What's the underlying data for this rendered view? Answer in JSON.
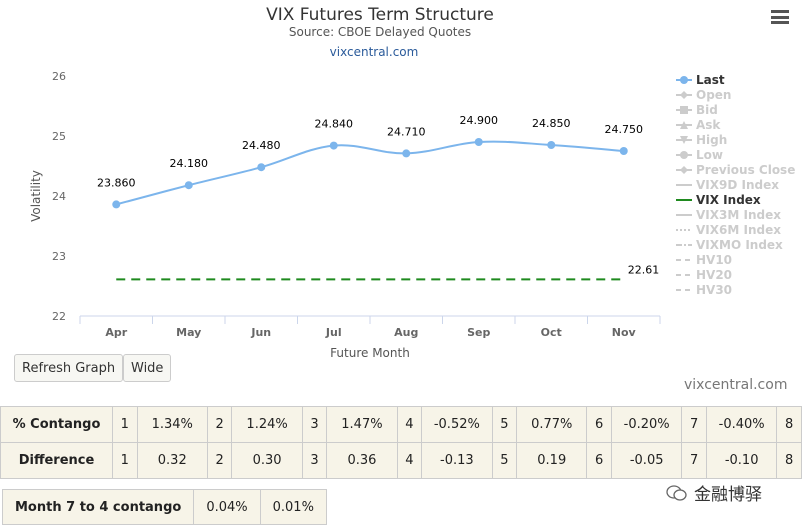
{
  "chart_data": {
    "type": "line",
    "title": "VIX Futures Term Structure",
    "subtitle": "Source: CBOE Delayed Quotes",
    "source_link": "vixcentral.com",
    "xlabel": "Future Month",
    "ylabel": "Volatility",
    "categories": [
      "Apr",
      "May",
      "Jun",
      "Jul",
      "Aug",
      "Sep",
      "Oct",
      "Nov"
    ],
    "ylim": [
      22,
      26
    ],
    "yticks": [
      "22",
      "23",
      "24",
      "25",
      "26"
    ],
    "series": [
      {
        "name": "Last",
        "color": "#7cb5ec",
        "values": [
          23.86,
          24.18,
          24.48,
          24.84,
          24.71,
          24.9,
          24.85,
          24.75
        ],
        "labels": [
          "23.860",
          "24.180",
          "24.480",
          "24.840",
          "24.710",
          "24.900",
          "24.850",
          "24.750"
        ]
      },
      {
        "name": "VIX Index",
        "color": "#1f8a1f",
        "values": [
          22.61,
          22.61,
          22.61,
          22.61,
          22.61,
          22.61,
          22.61,
          22.61
        ],
        "end_label": "22.61"
      }
    ],
    "legend_position": "right",
    "legend": [
      {
        "name": "Last",
        "active": true,
        "symbol": "circle",
        "color": "#7cb5ec"
      },
      {
        "name": "Open",
        "active": false,
        "symbol": "diamond"
      },
      {
        "name": "Bid",
        "active": false,
        "symbol": "square"
      },
      {
        "name": "Ask",
        "active": false,
        "symbol": "triangle"
      },
      {
        "name": "High",
        "active": false,
        "symbol": "triangle-down"
      },
      {
        "name": "Low",
        "active": false,
        "symbol": "circle"
      },
      {
        "name": "Previous Close",
        "active": false,
        "symbol": "diamond"
      },
      {
        "name": "VIX9D Index",
        "active": false,
        "symbol": "solid"
      },
      {
        "name": "VIX Index",
        "active": true,
        "symbol": "solid",
        "color": "#1f8a1f"
      },
      {
        "name": "VIX3M Index",
        "active": false,
        "symbol": "solid"
      },
      {
        "name": "VIX6M Index",
        "active": false,
        "symbol": "dotted"
      },
      {
        "name": "VIXMO Index",
        "active": false,
        "symbol": "dashdot"
      },
      {
        "name": "HV10",
        "active": false,
        "symbol": "dash"
      },
      {
        "name": "HV20",
        "active": false,
        "symbol": "dash"
      },
      {
        "name": "HV30",
        "active": false,
        "symbol": "dash"
      }
    ],
    "grid": false
  },
  "buttons": {
    "refresh": "Refresh Graph",
    "wide": "Wide"
  },
  "watermark": "vixcentral.com",
  "contango_table": {
    "rows": [
      {
        "label": "% Contango",
        "cells": [
          [
            "1",
            "1.34%"
          ],
          [
            "2",
            "1.24%"
          ],
          [
            "3",
            "1.47%"
          ],
          [
            "4",
            "-0.52%"
          ],
          [
            "5",
            "0.77%"
          ],
          [
            "6",
            "-0.20%"
          ],
          [
            "7",
            "-0.40%"
          ]
        ],
        "trail": "8"
      },
      {
        "label": "Difference",
        "cells": [
          [
            "1",
            "0.32"
          ],
          [
            "2",
            "0.30"
          ],
          [
            "3",
            "0.36"
          ],
          [
            "4",
            "-0.13"
          ],
          [
            "5",
            "0.19"
          ],
          [
            "6",
            "-0.05"
          ],
          [
            "7",
            "-0.10"
          ]
        ],
        "trail": "8"
      }
    ]
  },
  "month74": {
    "label": "Month 7 to 4 contango",
    "v1": "0.04%",
    "v2": "0.01%"
  },
  "brand": {
    "text": "金融博驿"
  }
}
